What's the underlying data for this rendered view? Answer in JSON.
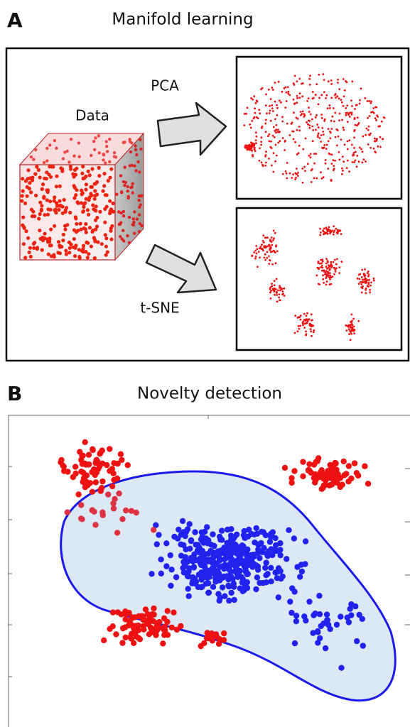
{
  "panel_a": {
    "label": "A",
    "title": "Manifold learning",
    "data_label": "Data",
    "pca_label": "PCA",
    "tsne_label": "t-SNE"
  },
  "panel_b": {
    "label": "B",
    "title": "Novelty detection"
  }
}
